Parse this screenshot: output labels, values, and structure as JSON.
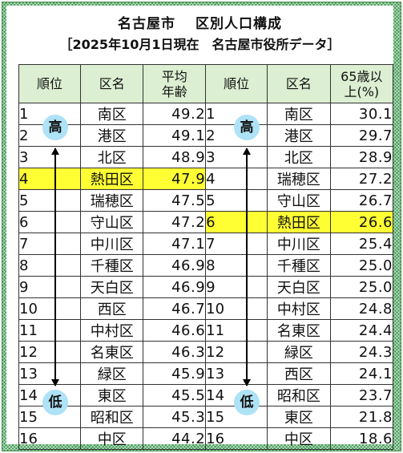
{
  "title": "名古屋市　 区別人口構成",
  "subtitle": "［2025年10月1日現在　名古屋市役所データ］",
  "header": {
    "left_rank": "順位",
    "left_ward": "区名",
    "left_value": [
      "平均",
      "年齢"
    ],
    "right_rank": "順位",
    "right_ward": "区名",
    "right_value": [
      "65歳以",
      "上(%)"
    ]
  },
  "markers": {
    "high": "高",
    "low": "低"
  },
  "colors": {
    "header_bg": "#dcefd2",
    "highlight": "#ffff33",
    "badge": "#aee2f6",
    "frame": "#3f9a52"
  },
  "highlight": {
    "left_row_index": 3,
    "right_row_index": 5
  },
  "average_age": [
    {
      "rank": "1",
      "ward": "南区",
      "value": "49.2"
    },
    {
      "rank": "2",
      "ward": "港区",
      "value": "49.1"
    },
    {
      "rank": "3",
      "ward": "北区",
      "value": "48.9"
    },
    {
      "rank": "4",
      "ward": "熱田区",
      "value": "47.9"
    },
    {
      "rank": "5",
      "ward": "瑞穂区",
      "value": "47.5"
    },
    {
      "rank": "6",
      "ward": "守山区",
      "value": "47.2"
    },
    {
      "rank": "7",
      "ward": "中川区",
      "value": "47.1"
    },
    {
      "rank": "8",
      "ward": "千種区",
      "value": "46.9"
    },
    {
      "rank": "9",
      "ward": "天白区",
      "value": "46.9"
    },
    {
      "rank": "10",
      "ward": "西区",
      "value": "46.7"
    },
    {
      "rank": "11",
      "ward": "中村区",
      "value": "46.6"
    },
    {
      "rank": "12",
      "ward": "名東区",
      "value": "46.3"
    },
    {
      "rank": "13",
      "ward": "緑区",
      "value": "45.9"
    },
    {
      "rank": "14",
      "ward": "東区",
      "value": "45.5"
    },
    {
      "rank": "15",
      "ward": "昭和区",
      "value": "45.3"
    },
    {
      "rank": "16",
      "ward": "中区",
      "value": "44.2"
    }
  ],
  "over65": [
    {
      "rank": "1",
      "ward": "南区",
      "value": "30.1"
    },
    {
      "rank": "2",
      "ward": "港区",
      "value": "29.7"
    },
    {
      "rank": "3",
      "ward": "北区",
      "value": "28.9"
    },
    {
      "rank": "4",
      "ward": "瑞穂区",
      "value": "27.2"
    },
    {
      "rank": "5",
      "ward": "守山区",
      "value": "26.7"
    },
    {
      "rank": "6",
      "ward": "熱田区",
      "value": "26.6"
    },
    {
      "rank": "7",
      "ward": "中川区",
      "value": "25.4"
    },
    {
      "rank": "8",
      "ward": "千種区",
      "value": "25.0"
    },
    {
      "rank": "9",
      "ward": "天白区",
      "value": "25.0"
    },
    {
      "rank": "10",
      "ward": "中村区",
      "value": "24.8"
    },
    {
      "rank": "11",
      "ward": "名東区",
      "value": "24.4"
    },
    {
      "rank": "12",
      "ward": "緑区",
      "value": "24.3"
    },
    {
      "rank": "13",
      "ward": "西区",
      "value": "24.1"
    },
    {
      "rank": "14",
      "ward": "昭和区",
      "value": "23.7"
    },
    {
      "rank": "15",
      "ward": "東区",
      "value": "21.8"
    },
    {
      "rank": "16",
      "ward": "中区",
      "value": "18.6"
    }
  ]
}
